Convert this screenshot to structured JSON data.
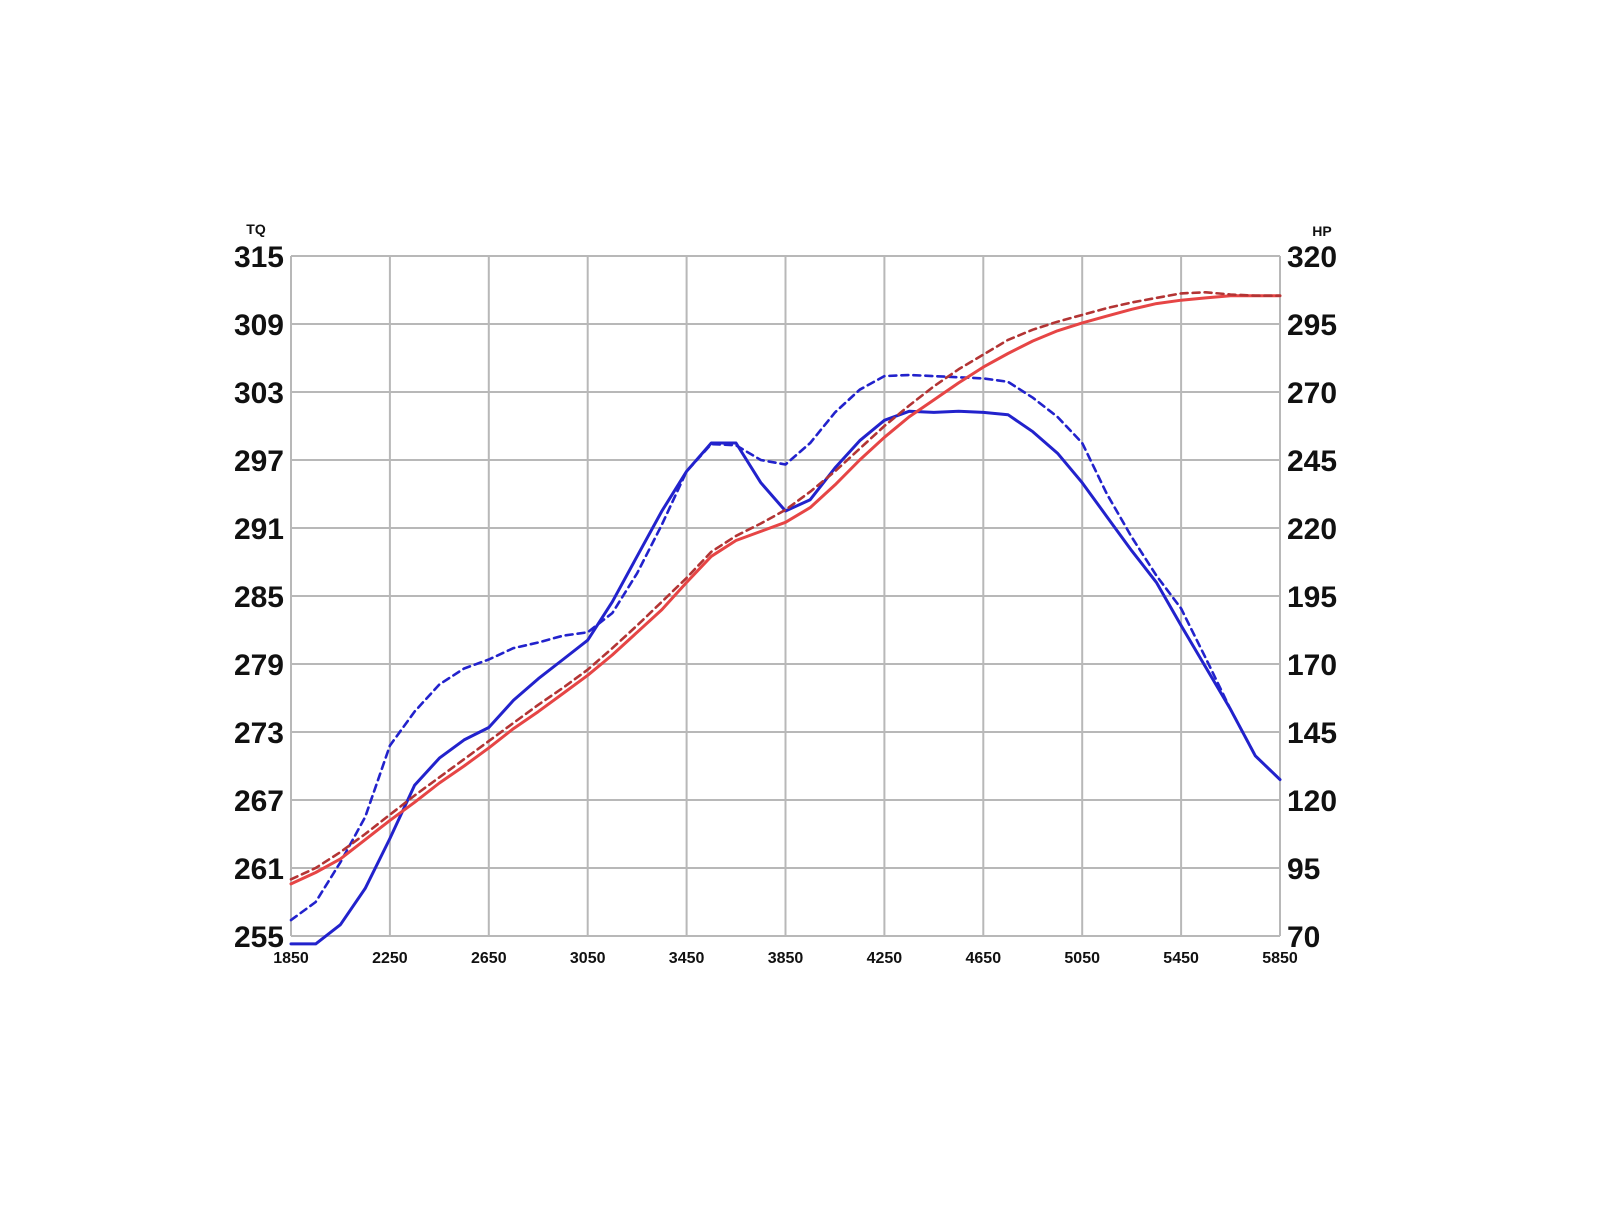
{
  "chart_data": {
    "type": "line",
    "left_axis_label": "TQ",
    "right_axis_label": "HP",
    "x_ticks": [
      "1850",
      "2250",
      "2650",
      "3050",
      "3450",
      "3850",
      "4250",
      "4650",
      "5050",
      "5450",
      "5850"
    ],
    "y_left_ticks": [
      "255",
      "261",
      "267",
      "273",
      "279",
      "285",
      "291",
      "297",
      "303",
      "309",
      "315"
    ],
    "y_right_ticks": [
      "70",
      "95",
      "120",
      "145",
      "170",
      "195",
      "220",
      "245",
      "270",
      "295",
      "320"
    ],
    "xlim": [
      1850,
      5850
    ],
    "ylim_left": [
      255,
      315
    ],
    "ylim_right": [
      70,
      320
    ],
    "grid": true,
    "legend": "none",
    "series": [
      {
        "axis": "left",
        "color": "#2222cc",
        "style": "solid",
        "x": [
          1850,
          1950,
          2050,
          2150,
          2250,
          2350,
          2450,
          2550,
          2650,
          2750,
          2850,
          2950,
          3050,
          3150,
          3250,
          3350,
          3450,
          3550,
          3650,
          3750,
          3850,
          3950,
          4050,
          4150,
          4250,
          4350,
          4450,
          4550,
          4650,
          4750,
          4850,
          4950,
          5050,
          5150,
          5250,
          5350,
          5450,
          5550,
          5650,
          5750,
          5850
        ],
        "y": [
          254.3,
          254.3,
          256.0,
          259.2,
          263.6,
          268.3,
          270.7,
          272.3,
          273.4,
          275.8,
          277.7,
          279.4,
          281.1,
          284.5,
          288.5,
          292.5,
          296.0,
          298.5,
          298.5,
          295.0,
          292.5,
          293.5,
          296.3,
          298.7,
          300.5,
          301.3,
          301.2,
          301.3,
          301.2,
          301.0,
          299.5,
          297.6,
          295.0,
          292.0,
          289.0,
          286.2,
          282.4,
          278.7,
          275.0,
          270.9,
          268.8
        ]
      },
      {
        "axis": "left",
        "color": "#2222cc",
        "style": "dashed",
        "x": [
          1850,
          1950,
          2050,
          2150,
          2250,
          2350,
          2450,
          2550,
          2650,
          2750,
          2850,
          2950,
          3050,
          3150,
          3250,
          3350,
          3450,
          3550,
          3650,
          3750,
          3850,
          3950,
          4050,
          4150,
          4250,
          4350,
          4450,
          4550,
          4650,
          4750,
          4850,
          4950,
          5050,
          5150,
          5250,
          5350,
          5450,
          5550,
          5650,
          5750,
          5850
        ],
        "y": [
          256.4,
          258.0,
          261.5,
          265.5,
          271.8,
          274.8,
          277.2,
          278.6,
          279.4,
          280.4,
          280.9,
          281.5,
          281.8,
          283.5,
          287.0,
          291.3,
          296.0,
          298.4,
          298.3,
          297.0,
          296.6,
          298.5,
          301.2,
          303.2,
          304.4,
          304.5,
          304.4,
          304.3,
          304.2,
          303.9,
          302.5,
          300.8,
          298.5,
          294.0,
          290.2,
          286.8,
          283.9,
          279.5,
          275.0,
          270.9,
          268.8
        ]
      },
      {
        "axis": "left",
        "color": "#e64545",
        "style": "solid",
        "x": [
          1850,
          1950,
          2050,
          2150,
          2250,
          2350,
          2450,
          2550,
          2650,
          2750,
          2850,
          2950,
          3050,
          3150,
          3250,
          3350,
          3450,
          3550,
          3650,
          3750,
          3850,
          3950,
          4050,
          4150,
          4250,
          4350,
          4450,
          4550,
          4650,
          4750,
          4850,
          4950,
          5050,
          5150,
          5250,
          5350,
          5450,
          5550,
          5650,
          5750,
          5850
        ],
        "y": [
          259.6,
          260.6,
          261.8,
          263.5,
          265.2,
          266.8,
          268.5,
          270.0,
          271.6,
          273.3,
          274.8,
          276.4,
          278.0,
          279.8,
          281.8,
          283.8,
          286.2,
          288.5,
          289.9,
          290.7,
          291.5,
          292.8,
          294.8,
          297.0,
          299.0,
          300.8,
          302.3,
          303.8,
          305.2,
          306.4,
          307.5,
          308.4,
          309.1,
          309.7,
          310.3,
          310.8,
          311.1,
          311.3,
          311.5,
          311.5,
          311.5
        ]
      },
      {
        "axis": "left",
        "color": "#b33434",
        "style": "dashed",
        "x": [
          1850,
          1950,
          2050,
          2150,
          2250,
          2350,
          2450,
          2550,
          2650,
          2750,
          2850,
          2950,
          3050,
          3150,
          3250,
          3350,
          3450,
          3550,
          3650,
          3750,
          3850,
          3950,
          4050,
          4150,
          4250,
          4350,
          4450,
          4550,
          4650,
          4750,
          4850,
          4950,
          5050,
          5150,
          5250,
          5350,
          5450,
          5550,
          5650,
          5750,
          5850
        ],
        "y": [
          260.0,
          261.0,
          262.4,
          264.0,
          265.7,
          267.4,
          269.0,
          270.6,
          272.2,
          273.8,
          275.4,
          276.9,
          278.5,
          280.4,
          282.4,
          284.5,
          286.6,
          288.9,
          290.3,
          291.4,
          292.6,
          294.2,
          296.0,
          298.0,
          300.0,
          301.8,
          303.5,
          305.0,
          306.3,
          307.6,
          308.5,
          309.2,
          309.8,
          310.4,
          310.9,
          311.3,
          311.7,
          311.8,
          311.6,
          311.5,
          311.5
        ]
      }
    ]
  }
}
